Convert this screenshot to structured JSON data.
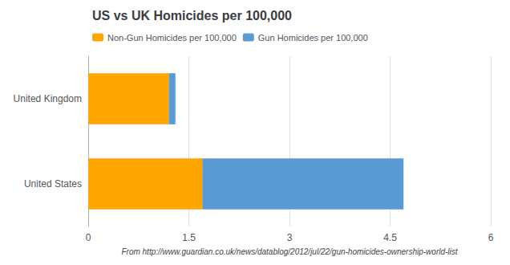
{
  "chart_data": {
    "type": "bar",
    "orientation": "horizontal",
    "stacked": true,
    "title": "US vs UK Homicides per 100,000",
    "categories": [
      "United States",
      "United Kingdom"
    ],
    "series": [
      {
        "name": "Non-Gun Homicides per 100,000",
        "color": "#FFA500",
        "values": [
          1.7,
          1.2
        ]
      },
      {
        "name": "Gun Homicides per 100,000",
        "color": "#5B9BD5",
        "values": [
          3.0,
          0.1
        ]
      }
    ],
    "xlim": [
      0,
      6
    ],
    "xticks": [
      0,
      1.5,
      3,
      4.5,
      6
    ],
    "xlabel": "From http://www.guardian.co.uk/news/datablog/2012/jul/22/gun-homicides-ownership-world-list",
    "grid": true,
    "legend": "upper left"
  }
}
